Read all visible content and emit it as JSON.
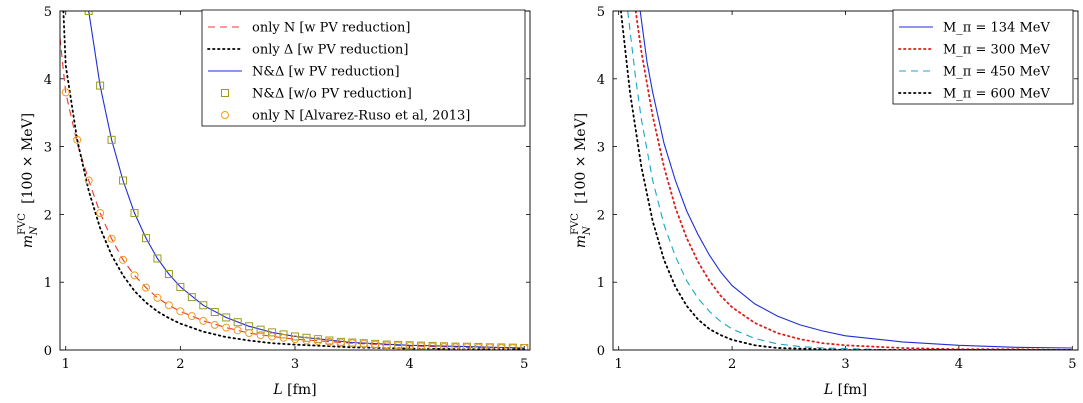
{
  "chart_data": [
    {
      "type": "line",
      "xlabel": "L [fm]",
      "ylabel": "m_N^FVC [100 × MeV]",
      "xlim": [
        0.95,
        5.05
      ],
      "ylim": [
        0,
        5
      ],
      "xticks": [
        1,
        2,
        3,
        4,
        5
      ],
      "yticks": [
        0,
        1,
        2,
        3,
        4,
        5
      ],
      "legend_position": "top-right",
      "series": [
        {
          "name": "only N [w PV reduction]",
          "style": "dashed",
          "color": "#e8392f",
          "x": [
            0.95,
            1.0,
            1.1,
            1.2,
            1.3,
            1.4,
            1.5,
            1.6,
            1.7,
            1.8,
            1.9,
            2.0,
            2.2,
            2.4,
            2.6,
            2.8,
            3.0,
            3.5,
            4.0,
            4.5,
            5.0
          ],
          "y": [
            4.6,
            3.8,
            3.05,
            2.5,
            2.02,
            1.64,
            1.33,
            1.1,
            0.92,
            0.77,
            0.66,
            0.57,
            0.43,
            0.33,
            0.25,
            0.2,
            0.16,
            0.1,
            0.06,
            0.04,
            0.03
          ]
        },
        {
          "name": "only Δ [w PV reduction]",
          "style": "dotted",
          "color": "#000000",
          "x": [
            0.98,
            1.0,
            1.1,
            1.2,
            1.3,
            1.4,
            1.5,
            1.6,
            1.7,
            1.8,
            1.9,
            2.0,
            2.2,
            2.4,
            2.6,
            2.8,
            3.0,
            3.5,
            4.0,
            4.5,
            5.0
          ],
          "y": [
            5.0,
            4.2,
            3.1,
            2.35,
            1.8,
            1.4,
            1.1,
            0.87,
            0.7,
            0.57,
            0.47,
            0.39,
            0.27,
            0.19,
            0.14,
            0.1,
            0.08,
            0.04,
            0.02,
            0.01,
            0.01
          ]
        },
        {
          "name": "N&Δ [w PV reduction]",
          "style": "solid",
          "color": "#1f2fd6",
          "x": [
            1.2,
            1.3,
            1.4,
            1.5,
            1.6,
            1.7,
            1.8,
            1.9,
            2.0,
            2.2,
            2.4,
            2.6,
            2.8,
            3.0,
            3.5,
            4.0,
            4.5,
            5.0
          ],
          "y": [
            5.0,
            3.9,
            3.1,
            2.5,
            2.02,
            1.65,
            1.35,
            1.12,
            0.93,
            0.66,
            0.48,
            0.35,
            0.26,
            0.2,
            0.11,
            0.07,
            0.05,
            0.03
          ]
        },
        {
          "name": "N&Δ [w/o PV reduction]",
          "style": "square-markers",
          "color": "#9b9b1e",
          "x": [
            1.2,
            1.3,
            1.4,
            1.5,
            1.6,
            1.7,
            1.8,
            1.9,
            2.0,
            2.1,
            2.2,
            2.3,
            2.4,
            2.5,
            2.6,
            2.7,
            2.8,
            2.9,
            3.0,
            3.1,
            3.2,
            3.3,
            3.4,
            3.5,
            3.6,
            3.7,
            3.8,
            3.9,
            4.0,
            4.1,
            4.2,
            4.3,
            4.4,
            4.5,
            4.6,
            4.7,
            4.8,
            4.9,
            5.0
          ],
          "y": [
            5.0,
            3.9,
            3.1,
            2.5,
            2.02,
            1.65,
            1.35,
            1.12,
            0.93,
            0.78,
            0.66,
            0.56,
            0.48,
            0.41,
            0.35,
            0.3,
            0.26,
            0.23,
            0.2,
            0.18,
            0.16,
            0.14,
            0.12,
            0.11,
            0.1,
            0.09,
            0.08,
            0.075,
            0.07,
            0.065,
            0.06,
            0.055,
            0.05,
            0.048,
            0.045,
            0.04,
            0.038,
            0.035,
            0.03
          ]
        },
        {
          "name": "only N [Alvarez-Ruso et al, 2013]",
          "style": "circle-markers",
          "color": "#f39a1e",
          "x": [
            1.0,
            1.1,
            1.2,
            1.3,
            1.4,
            1.5,
            1.6,
            1.7,
            1.8,
            1.9,
            2.0,
            2.1,
            2.2,
            2.3,
            2.4,
            2.5,
            2.6,
            2.7,
            2.8,
            2.9,
            3.0,
            3.1,
            3.2,
            3.3,
            3.4,
            3.5,
            3.6,
            3.7,
            3.8,
            3.9,
            4.0,
            4.1,
            4.2,
            4.3,
            4.4,
            4.5,
            4.6,
            4.7,
            4.8,
            4.9,
            5.0
          ],
          "y": [
            3.8,
            3.1,
            2.5,
            2.02,
            1.64,
            1.33,
            1.1,
            0.92,
            0.77,
            0.66,
            0.57,
            0.5,
            0.43,
            0.37,
            0.33,
            0.29,
            0.25,
            0.22,
            0.2,
            0.18,
            0.16,
            0.14,
            0.13,
            0.12,
            0.11,
            0.1,
            0.09,
            0.08,
            0.07,
            0.065,
            0.06,
            0.055,
            0.05,
            0.045,
            0.04,
            0.04,
            0.035,
            0.035,
            0.03,
            0.03,
            0.03
          ]
        }
      ]
    },
    {
      "type": "line",
      "xlabel": "L [fm]",
      "ylabel": "m_N^FVC [100 × MeV]",
      "xlim": [
        0.95,
        5.05
      ],
      "ylim": [
        0,
        5
      ],
      "xticks": [
        1,
        2,
        3,
        4,
        5
      ],
      "yticks": [
        0,
        1,
        2,
        3,
        4,
        5
      ],
      "legend_position": "top-right",
      "series": [
        {
          "name": "M_π = 134 MeV",
          "style": "solid",
          "color": "#1f2fd6",
          "x": [
            1.19,
            1.25,
            1.3,
            1.4,
            1.5,
            1.6,
            1.7,
            1.8,
            1.9,
            2.0,
            2.2,
            2.4,
            2.6,
            2.8,
            3.0,
            3.5,
            4.0,
            4.5,
            5.0
          ],
          "y": [
            5.0,
            4.25,
            3.8,
            3.05,
            2.5,
            2.05,
            1.7,
            1.4,
            1.15,
            0.95,
            0.68,
            0.5,
            0.37,
            0.28,
            0.21,
            0.12,
            0.07,
            0.04,
            0.03
          ]
        },
        {
          "name": "M_π = 300 MeV",
          "style": "dotted",
          "color": "#e01b1b",
          "x": [
            1.15,
            1.2,
            1.3,
            1.4,
            1.5,
            1.6,
            1.7,
            1.8,
            1.9,
            2.0,
            2.2,
            2.4,
            2.6,
            2.8,
            3.0,
            3.5,
            4.0,
            4.5,
            5.0
          ],
          "y": [
            5.0,
            4.4,
            3.45,
            2.7,
            2.1,
            1.65,
            1.3,
            1.02,
            0.8,
            0.63,
            0.4,
            0.25,
            0.16,
            0.1,
            0.07,
            0.03,
            0.01,
            0.01,
            0.0
          ]
        },
        {
          "name": "M_π = 450 MeV",
          "style": "dashed",
          "color": "#1aa8c7",
          "x": [
            1.08,
            1.15,
            1.2,
            1.3,
            1.4,
            1.5,
            1.6,
            1.7,
            1.8,
            1.9,
            2.0,
            2.2,
            2.4,
            2.6,
            2.8,
            3.0,
            3.5,
            4.0,
            5.0
          ],
          "y": [
            5.0,
            4.0,
            3.4,
            2.5,
            1.85,
            1.38,
            1.02,
            0.76,
            0.57,
            0.42,
            0.31,
            0.17,
            0.09,
            0.05,
            0.03,
            0.02,
            0.0,
            0.0,
            0.0
          ]
        },
        {
          "name": "M_π = 600 MeV",
          "style": "dotted",
          "color": "#000000",
          "x": [
            1.02,
            1.1,
            1.2,
            1.3,
            1.4,
            1.5,
            1.6,
            1.7,
            1.8,
            1.9,
            2.0,
            2.2,
            2.4,
            2.6,
            3.0,
            3.5,
            4.0,
            5.0
          ],
          "y": [
            5.0,
            3.8,
            2.7,
            1.9,
            1.33,
            0.93,
            0.65,
            0.45,
            0.31,
            0.22,
            0.15,
            0.07,
            0.03,
            0.02,
            0.0,
            0.0,
            0.0,
            0.0
          ]
        }
      ]
    }
  ]
}
